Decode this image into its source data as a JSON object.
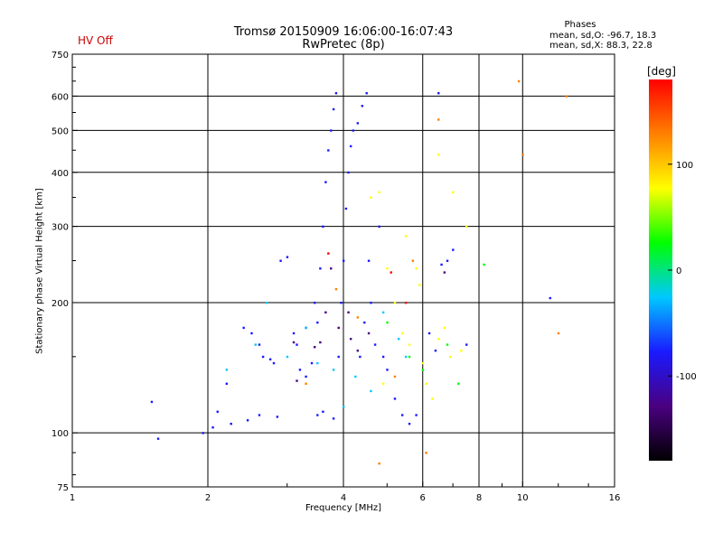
{
  "header": {
    "hv_status": "HV Off",
    "title_line1": "Tromsø 20150909 16:06:00-16:07:43",
    "title_line2": "RwPretec (8p)"
  },
  "phases": {
    "title": "Phases",
    "o_line": "mean, sd,O: -96.7, 18.3",
    "x_line": "mean, sd,X:  88.3, 22.8"
  },
  "colorbar": {
    "unit": "[deg]",
    "tick_labels": [
      "100",
      "0",
      "-100"
    ],
    "tick_values": [
      100,
      0,
      -100
    ],
    "range": [
      -180,
      180
    ],
    "colors": [
      "#000000",
      "#4a0080",
      "#1a1aff",
      "#00c8ff",
      "#00ff00",
      "#ffff00",
      "#ff8000",
      "#ff0000"
    ]
  },
  "chart_data": {
    "type": "scatter",
    "xlabel": "Frequency [MHz]",
    "ylabel": "Stationary phase Virtual Height [km]",
    "xscale": "log",
    "yscale": "log",
    "xlim": [
      1,
      16
    ],
    "ylim": [
      75,
      750
    ],
    "xticks": [
      1,
      2,
      4,
      6,
      8,
      10,
      16
    ],
    "xtick_labels": [
      "1",
      "2",
      "4",
      "6",
      "8",
      "10",
      "16"
    ],
    "x_gridlines": [
      2,
      4,
      6,
      8,
      10
    ],
    "yticks": [
      75,
      100,
      200,
      300,
      400,
      500,
      600,
      750
    ],
    "ytick_labels": [
      "75",
      "100",
      "200",
      "300",
      "400",
      "500",
      "600",
      "750"
    ],
    "y_gridlines": [
      100,
      200,
      300,
      400,
      500,
      600
    ],
    "grid": true,
    "series": [
      {
        "color": "#1a1aff",
        "points": [
          [
            1.5,
            118
          ],
          [
            1.55,
            97
          ],
          [
            1.95,
            100
          ],
          [
            2.05,
            103
          ],
          [
            2.25,
            105
          ],
          [
            2.45,
            107
          ],
          [
            2.6,
            110
          ],
          [
            2.85,
            109
          ],
          [
            2.1,
            112
          ],
          [
            2.2,
            130
          ],
          [
            2.4,
            175
          ],
          [
            2.5,
            170
          ],
          [
            2.6,
            160
          ],
          [
            2.65,
            150
          ],
          [
            2.75,
            148
          ],
          [
            2.8,
            145
          ],
          [
            2.9,
            250
          ],
          [
            3.0,
            255
          ],
          [
            3.1,
            170
          ],
          [
            3.15,
            160
          ],
          [
            3.2,
            140
          ],
          [
            3.3,
            135
          ],
          [
            3.4,
            145
          ],
          [
            3.45,
            200
          ],
          [
            3.5,
            180
          ],
          [
            3.55,
            240
          ],
          [
            3.6,
            300
          ],
          [
            3.65,
            380
          ],
          [
            3.7,
            450
          ],
          [
            3.75,
            500
          ],
          [
            3.8,
            560
          ],
          [
            3.85,
            610
          ],
          [
            3.5,
            110
          ],
          [
            3.6,
            112
          ],
          [
            3.8,
            108
          ],
          [
            3.9,
            150
          ],
          [
            3.95,
            200
          ],
          [
            4.0,
            250
          ],
          [
            4.05,
            330
          ],
          [
            4.1,
            400
          ],
          [
            4.15,
            460
          ],
          [
            4.2,
            500
          ],
          [
            4.3,
            520
          ],
          [
            4.4,
            570
          ],
          [
            4.5,
            610
          ],
          [
            4.35,
            150
          ],
          [
            4.45,
            180
          ],
          [
            4.55,
            250
          ],
          [
            4.6,
            200
          ],
          [
            4.7,
            160
          ],
          [
            4.8,
            300
          ],
          [
            4.9,
            150
          ],
          [
            5.0,
            140
          ],
          [
            5.2,
            120
          ],
          [
            5.4,
            110
          ],
          [
            5.6,
            105
          ],
          [
            5.8,
            110
          ],
          [
            6.2,
            170
          ],
          [
            6.4,
            155
          ],
          [
            6.6,
            245
          ],
          [
            6.8,
            250
          ],
          [
            7.0,
            265
          ],
          [
            7.5,
            160
          ],
          [
            6.5,
            610
          ],
          [
            11.5,
            205
          ]
        ]
      },
      {
        "color": "#4a0080",
        "points": [
          [
            3.1,
            162
          ],
          [
            3.15,
            132
          ],
          [
            3.3,
            175
          ],
          [
            3.45,
            158
          ],
          [
            3.55,
            162
          ],
          [
            3.65,
            190
          ],
          [
            3.75,
            240
          ],
          [
            4.15,
            165
          ],
          [
            4.3,
            155
          ],
          [
            4.55,
            170
          ],
          [
            4.1,
            190
          ],
          [
            3.9,
            175
          ],
          [
            6.7,
            235
          ]
        ]
      },
      {
        "color": "#00c8ff",
        "points": [
          [
            2.2,
            140
          ],
          [
            2.55,
            160
          ],
          [
            2.7,
            200
          ],
          [
            3.0,
            150
          ],
          [
            3.3,
            175
          ],
          [
            3.5,
            145
          ],
          [
            3.8,
            140
          ],
          [
            4.0,
            115
          ],
          [
            4.25,
            135
          ],
          [
            4.6,
            125
          ],
          [
            4.9,
            190
          ],
          [
            5.3,
            165
          ],
          [
            5.5,
            150
          ]
        ]
      },
      {
        "color": "#00ff00",
        "points": [
          [
            5.0,
            180
          ],
          [
            5.6,
            150
          ],
          [
            6.0,
            140
          ],
          [
            6.8,
            160
          ],
          [
            7.2,
            130
          ],
          [
            8.2,
            245
          ]
        ]
      },
      {
        "color": "#ffff00",
        "points": [
          [
            4.9,
            130
          ],
          [
            5.0,
            240
          ],
          [
            5.2,
            200
          ],
          [
            5.4,
            170
          ],
          [
            5.5,
            285
          ],
          [
            5.6,
            160
          ],
          [
            5.8,
            240
          ],
          [
            5.9,
            220
          ],
          [
            6.0,
            145
          ],
          [
            6.1,
            130
          ],
          [
            6.5,
            165
          ],
          [
            6.7,
            175
          ],
          [
            6.9,
            150
          ],
          [
            7.3,
            155
          ],
          [
            7.5,
            300
          ],
          [
            7.0,
            360
          ],
          [
            4.6,
            350
          ],
          [
            4.8,
            360
          ],
          [
            6.5,
            440
          ],
          [
            6.3,
            120
          ]
        ]
      },
      {
        "color": "#ff8000",
        "points": [
          [
            3.3,
            130
          ],
          [
            3.85,
            215
          ],
          [
            4.3,
            185
          ],
          [
            5.2,
            135
          ],
          [
            5.7,
            250
          ],
          [
            6.5,
            530
          ],
          [
            9.8,
            650
          ],
          [
            10.0,
            440
          ],
          [
            12.5,
            600
          ],
          [
            12.0,
            170
          ],
          [
            4.8,
            85
          ],
          [
            6.1,
            90
          ]
        ]
      },
      {
        "color": "#ff0000",
        "points": [
          [
            3.7,
            260
          ],
          [
            5.1,
            235
          ],
          [
            5.5,
            200
          ]
        ]
      }
    ]
  }
}
